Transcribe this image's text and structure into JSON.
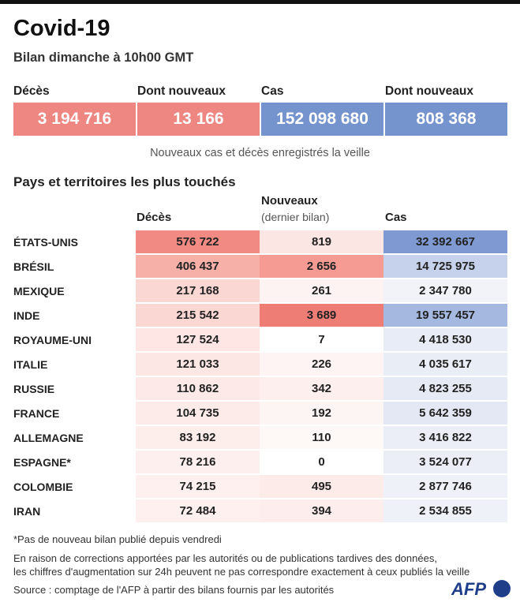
{
  "header": {
    "title": "Covid-19",
    "subtitle": "Bilan dimanche à 10h00 GMT"
  },
  "summary": {
    "items": [
      {
        "label": "Décès",
        "value": "3 194 716",
        "color": "#ee8781"
      },
      {
        "label": "Dont nouveaux",
        "value": "13 166",
        "color": "#ee8781"
      },
      {
        "label": "Cas",
        "value": "152 098 680",
        "color": "#7593cd"
      },
      {
        "label": "Dont nouveaux",
        "value": "808 368",
        "color": "#7593cd"
      }
    ],
    "note": "Nouveaux cas et décès enregistrés la veille"
  },
  "table": {
    "section_title": "Pays et territoires les plus touchés",
    "headers": {
      "deaths": "Décès",
      "new": "Nouveaux",
      "new_sub": "(dernier bilan)",
      "cases": "Cas"
    },
    "rows": [
      {
        "country": "ÉTATS-UNIS",
        "deaths": "576 722",
        "new": "819",
        "cases": "32 392 667",
        "deaths_color": "#f08a82",
        "new_color": "#fce6e4",
        "cases_color": "#7f9ad2"
      },
      {
        "country": "BRÉSIL",
        "deaths": "406 437",
        "new": "2 656",
        "cases": "14 725 975",
        "deaths_color": "#f6b0a8",
        "new_color": "#f59b94",
        "cases_color": "#c6d2ec"
      },
      {
        "country": "MEXIQUE",
        "deaths": "217 168",
        "new": "261",
        "cases": "2 347 780",
        "deaths_color": "#fbd7d3",
        "new_color": "#fdf3f2",
        "cases_color": "#f1f3f9"
      },
      {
        "country": "INDE",
        "deaths": "215 542",
        "new": "3 689",
        "cases": "19 557 457",
        "deaths_color": "#fbd7d3",
        "new_color": "#ee7d76",
        "cases_color": "#a4b8e0"
      },
      {
        "country": "ROYAUME-UNI",
        "deaths": "127 524",
        "new": "7",
        "cases": "4 418 530",
        "deaths_color": "#fde6e3",
        "new_color": "#ffffff",
        "cases_color": "#e8ecf6"
      },
      {
        "country": "ITALIE",
        "deaths": "121 033",
        "new": "226",
        "cases": "4 035 617",
        "deaths_color": "#fde7e4",
        "new_color": "#fdf4f3",
        "cases_color": "#e9edf6"
      },
      {
        "country": "RUSSIE",
        "deaths": "110 862",
        "new": "342",
        "cases": "4 823 255",
        "deaths_color": "#fdeae8",
        "new_color": "#fdefee",
        "cases_color": "#e6eaf5"
      },
      {
        "country": "FRANCE",
        "deaths": "104 735",
        "new": "192",
        "cases": "5 642 359",
        "deaths_color": "#fdebe9",
        "new_color": "#fdf5f4",
        "cases_color": "#e3e8f4"
      },
      {
        "country": "ALLEMAGNE",
        "deaths": "83 192",
        "new": "110",
        "cases": "3 416 822",
        "deaths_color": "#fdeeec",
        "new_color": "#fef8f7",
        "cases_color": "#ebeef7"
      },
      {
        "country": "ESPAGNE*",
        "deaths": "78 216",
        "new": "0",
        "cases": "3 524 077",
        "deaths_color": "#fdefed",
        "new_color": "#ffffff",
        "cases_color": "#ebeef7"
      },
      {
        "country": "COLOMBIE",
        "deaths": "74 215",
        "new": "495",
        "cases": "2 877 746",
        "deaths_color": "#fdf0ee",
        "new_color": "#fdebea",
        "cases_color": "#eef1f8"
      },
      {
        "country": "IRAN",
        "deaths": "72 484",
        "new": "394",
        "cases": "2 534 855",
        "deaths_color": "#fdf0ee",
        "new_color": "#fdeeed",
        "cases_color": "#eff1f8"
      }
    ]
  },
  "footer": {
    "note1": "*Pas de nouveau bilan publié depuis vendredi",
    "note2a": "En raison de corrections apportées par les autorités ou de publications tardives des données,",
    "note2b": "les chiffres d'augmentation sur 24h peuvent ne pas correspondre exactement à ceux publiés la veille",
    "source": "Source : comptage de l'AFP à partir des bilans fournis par les autorités",
    "logo": "AFP"
  }
}
